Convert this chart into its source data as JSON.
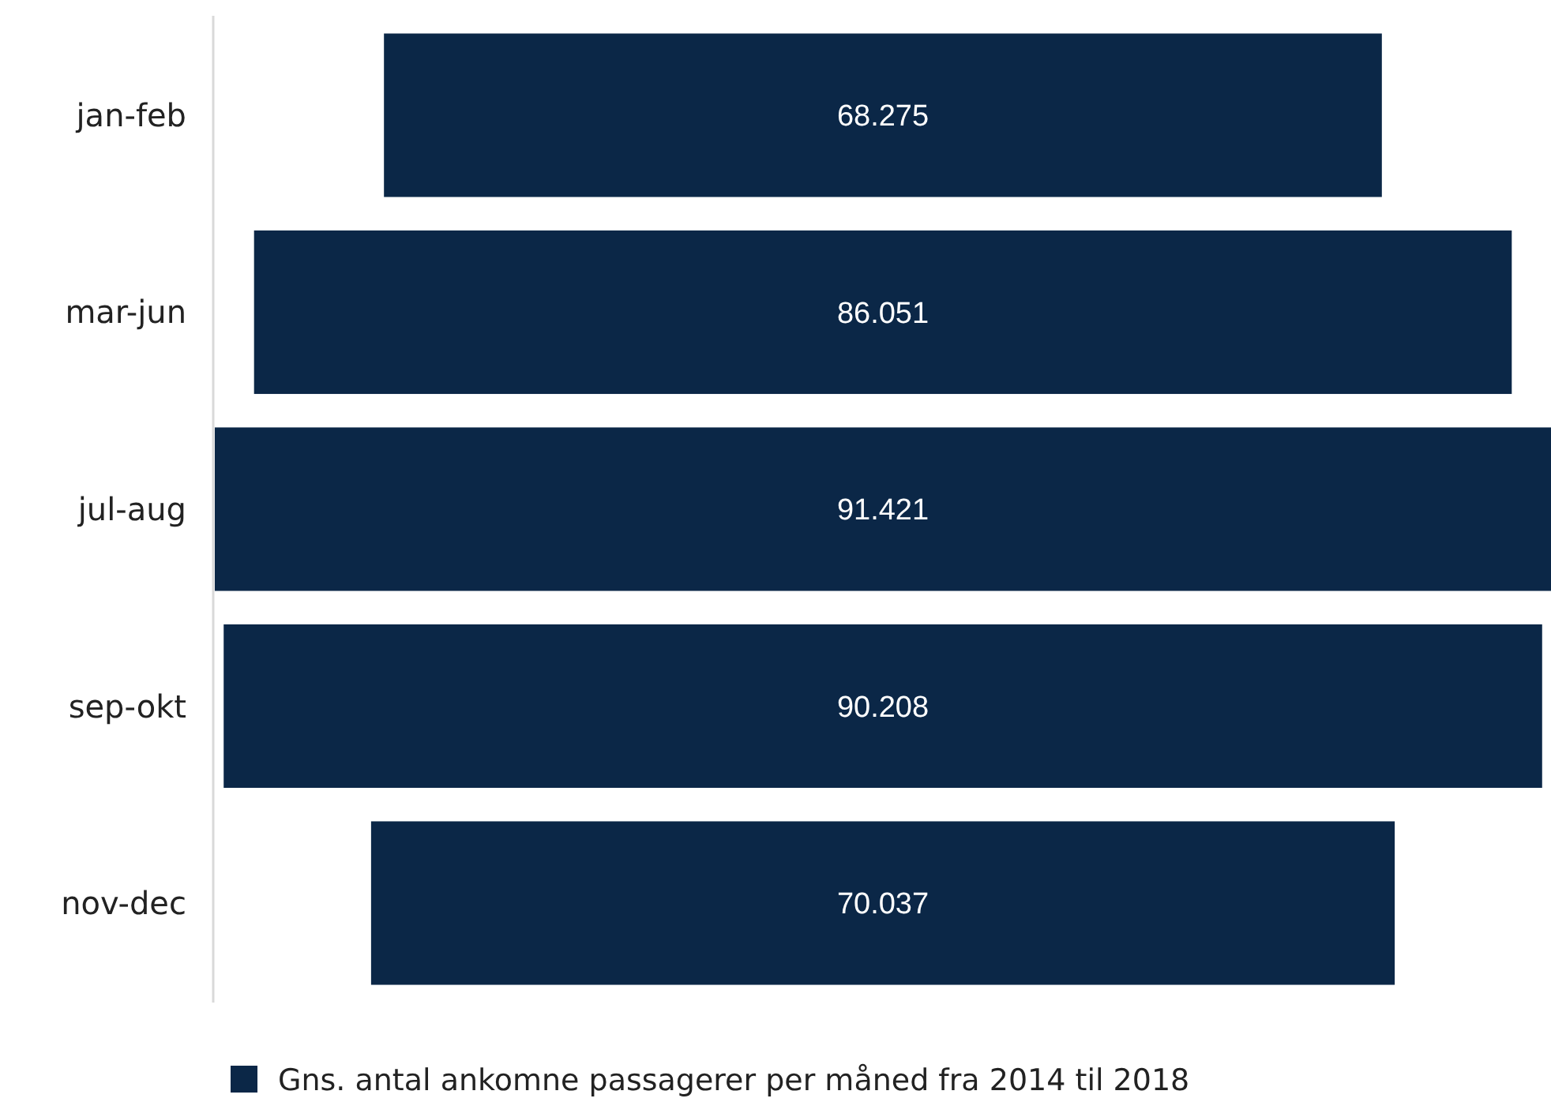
{
  "chart_data": {
    "type": "other",
    "categories": [
      "jan-feb",
      "mar-jun",
      "jul-aug",
      "sep-okt",
      "nov-dec"
    ],
    "series": [
      {
        "name": "Gns. antal ankomne passagerer per måned fra 2014 til 2018",
        "color": "#0b2747",
        "values": [
          68275,
          86051,
          91421,
          90208,
          70037
        ],
        "value_labels": [
          "68.275",
          "86.051",
          "91.421",
          "90.208",
          "70.037"
        ]
      }
    ],
    "legend": "bottom"
  }
}
